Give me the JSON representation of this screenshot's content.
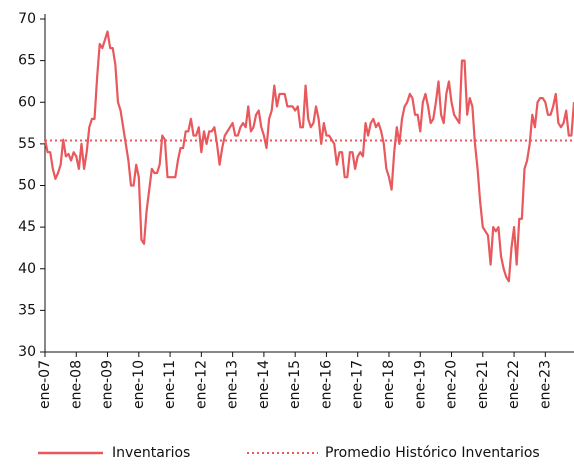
{
  "chart_data": {
    "type": "line",
    "categories": [
      "ene-07",
      null,
      null,
      null,
      null,
      null,
      null,
      null,
      null,
      null,
      null,
      null,
      "ene-08",
      null,
      null,
      null,
      null,
      null,
      null,
      null,
      null,
      null,
      null,
      null,
      "ene-09",
      null,
      null,
      null,
      null,
      null,
      null,
      null,
      null,
      null,
      null,
      null,
      "ene-10",
      null,
      null,
      null,
      null,
      null,
      null,
      null,
      null,
      null,
      null,
      null,
      "ene-11",
      null,
      null,
      null,
      null,
      null,
      null,
      null,
      null,
      null,
      null,
      null,
      "ene-12",
      null,
      null,
      null,
      null,
      null,
      null,
      null,
      null,
      null,
      null,
      null,
      "ene-13",
      null,
      null,
      null,
      null,
      null,
      null,
      null,
      null,
      null,
      null,
      null,
      "ene-14",
      null,
      null,
      null,
      null,
      null,
      null,
      null,
      null,
      null,
      null,
      null,
      "ene-15",
      null,
      null,
      null,
      null,
      null,
      null,
      null,
      null,
      null,
      null,
      null,
      "ene-16",
      null,
      null,
      null,
      null,
      null,
      null,
      null,
      null,
      null,
      null,
      null,
      "ene-17",
      null,
      null,
      null,
      null,
      null,
      null,
      null,
      null,
      null,
      null,
      null,
      "ene-18",
      null,
      null,
      null,
      null,
      null,
      null,
      null,
      null,
      null,
      null,
      null,
      "ene-19",
      null,
      null,
      null,
      null,
      null,
      null,
      null,
      null,
      null,
      null,
      null,
      "ene-20",
      null,
      null,
      null,
      null,
      null,
      null,
      null,
      null,
      null,
      null,
      null,
      "ene-21",
      null,
      null,
      null,
      null,
      null,
      null,
      null,
      null,
      null,
      null,
      null,
      "ene-22",
      null,
      null,
      null,
      null,
      null,
      null,
      null,
      null,
      null,
      null,
      null,
      "ene-23",
      null,
      null,
      null,
      null,
      null,
      null,
      null,
      null,
      null,
      null,
      null
    ],
    "series": [
      {
        "name": "Inventarios",
        "color": "#e8585c",
        "values": [
          55.5,
          54,
          54,
          52,
          50.8,
          51.5,
          52.5,
          55.5,
          53.5,
          53.8,
          53,
          54,
          53.5,
          52,
          55,
          52,
          54,
          57,
          58,
          58,
          63,
          67,
          66.5,
          67.5,
          68.5,
          66.5,
          66.5,
          64.5,
          60,
          59,
          57,
          55,
          53,
          50,
          50,
          52.5,
          51,
          43.5,
          43,
          47,
          49.5,
          52,
          51.5,
          51.5,
          52.5,
          56,
          55.5,
          51,
          51,
          51,
          51,
          53,
          54.5,
          54.5,
          56.5,
          56.5,
          58,
          56,
          56,
          57,
          54,
          56.5,
          55,
          56.5,
          56.5,
          57,
          55,
          52.5,
          54.5,
          56,
          56.5,
          57,
          57.5,
          56,
          56,
          57,
          57.5,
          57,
          59.5,
          56.5,
          57,
          58.5,
          59,
          57,
          56,
          54.5,
          58,
          59,
          62,
          59.5,
          61,
          61,
          61,
          59.5,
          59.5,
          59.5,
          59,
          59.5,
          57,
          57,
          62,
          58,
          57,
          57.5,
          59.5,
          58,
          55,
          57.5,
          56,
          56,
          55.5,
          55,
          52.5,
          54,
          54,
          51,
          51,
          54,
          54,
          52,
          53.5,
          54,
          53.5,
          57.5,
          56,
          57.5,
          58,
          57,
          57.5,
          56.5,
          55,
          52,
          51,
          49.5,
          54,
          57,
          55,
          58,
          59.5,
          60,
          61,
          60.5,
          58.5,
          58.5,
          56.5,
          60,
          61,
          59.5,
          57.5,
          58,
          60,
          62.5,
          58.5,
          57.5,
          61,
          62.5,
          60,
          58.5,
          58,
          57.5,
          65,
          65,
          58.5,
          60.5,
          59.5,
          55,
          52,
          48,
          45,
          44.5,
          44,
          40.5,
          45,
          44.5,
          45,
          41.5,
          40,
          39,
          38.5,
          42.5,
          45,
          40.5,
          46,
          46,
          52,
          53,
          55,
          58.5,
          57,
          60,
          60.5,
          60.5,
          60,
          58.5,
          58.5,
          59.5,
          61,
          57.5,
          57,
          57.5,
          59,
          56,
          56,
          60
        ]
      }
    ],
    "reference_line": {
      "name": "Promedio Histórico Inventarios",
      "value": 55.4,
      "color": "#e8585c"
    },
    "ylim": [
      30,
      70
    ],
    "yticks": [
      30,
      35,
      40,
      45,
      50,
      55,
      60,
      65,
      70
    ]
  }
}
